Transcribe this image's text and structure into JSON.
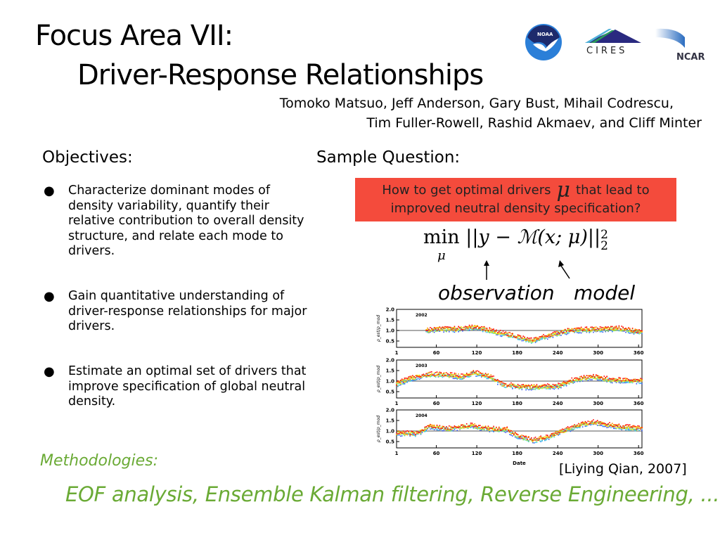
{
  "title": {
    "line1": "Focus Area VII:",
    "line2": "Driver-Response Relationships"
  },
  "authors": {
    "line1": "Tomoko Matsuo, Jeff Anderson, Gary Bust, Mihail Codrescu,",
    "line2": "Tim Fuller-Rowell, Rashid Akmaev, and Cliff Minter"
  },
  "logos": [
    {
      "name": "NOAA",
      "text": "NOAA"
    },
    {
      "name": "CIRES",
      "text": "CIRES"
    },
    {
      "name": "NCAR",
      "text": "NCAR"
    }
  ],
  "objectives": {
    "heading": "Objectives:",
    "items": [
      "Characterize dominant modes of density variability, quantify their relative contribution to overall density structure, and relate each mode to drivers.",
      "Gain quantitative understanding of driver-response relationships for major drivers.",
      "Estimate an optimal set of drivers that improve specification of global neutral density."
    ]
  },
  "sample": {
    "heading": "Sample Question:",
    "question_pre": "How to get optimal drivers",
    "question_symbol": "μ",
    "question_post": "that lead to improved neutral density specification?",
    "question_color": "#f44b3c",
    "formula": {
      "min": "min",
      "sub": "μ",
      "body": "||y − ℳ(x; μ)||",
      "sup": "2",
      "subscript": "2"
    },
    "label_observation": "observation",
    "label_model": "model"
  },
  "chart_data": {
    "type": "scatter",
    "ylabel": "ρ_est/ρ_mod",
    "xlabel": "Date",
    "xlim": [
      1,
      365
    ],
    "ylim": [
      0.2,
      2.0
    ],
    "xticks": [
      "1",
      "60",
      "120",
      "180",
      "240",
      "300",
      "360"
    ],
    "yticks": [
      "0.5",
      "1.0",
      "1.5",
      "2.0"
    ],
    "reference_line": 1.0,
    "panels": [
      {
        "title": "2002",
        "trend_days": [
          45,
          60,
          90,
          120,
          150,
          180,
          200,
          215,
          240,
          260,
          300,
          330,
          365
        ],
        "trend_values": [
          1.0,
          1.05,
          1.05,
          1.15,
          0.9,
          0.7,
          0.5,
          0.65,
          0.85,
          1.0,
          1.05,
          1.1,
          0.9
        ]
      },
      {
        "title": "2003",
        "trend_days": [
          1,
          20,
          45,
          70,
          100,
          115,
          140,
          160,
          180,
          200,
          240,
          260,
          290,
          320,
          365
        ],
        "trend_values": [
          0.85,
          1.1,
          1.3,
          1.3,
          1.2,
          1.4,
          1.2,
          0.8,
          0.75,
          0.7,
          0.75,
          1.0,
          1.2,
          1.05,
          1.0
        ]
      },
      {
        "title": "2004",
        "trend_days": [
          1,
          30,
          50,
          80,
          110,
          140,
          165,
          180,
          205,
          225,
          240,
          275,
          295,
          330,
          365
        ],
        "trend_values": [
          0.9,
          0.85,
          1.2,
          1.1,
          1.25,
          1.1,
          1.05,
          0.75,
          0.55,
          0.7,
          0.9,
          1.3,
          1.4,
          1.2,
          1.1
        ]
      }
    ],
    "series_colors": [
      "#ff0000",
      "#ff8800",
      "#eeee00",
      "#88dd44",
      "#33ccee",
      "#3355ee"
    ],
    "grid": false
  },
  "citation": "[Liying Qian, 2007]",
  "methodologies": {
    "heading": "Methodologies:",
    "items": "EOF analysis, Ensemble Kalman filtering, Reverse Engineering, ...",
    "color": "#6aaa35"
  }
}
